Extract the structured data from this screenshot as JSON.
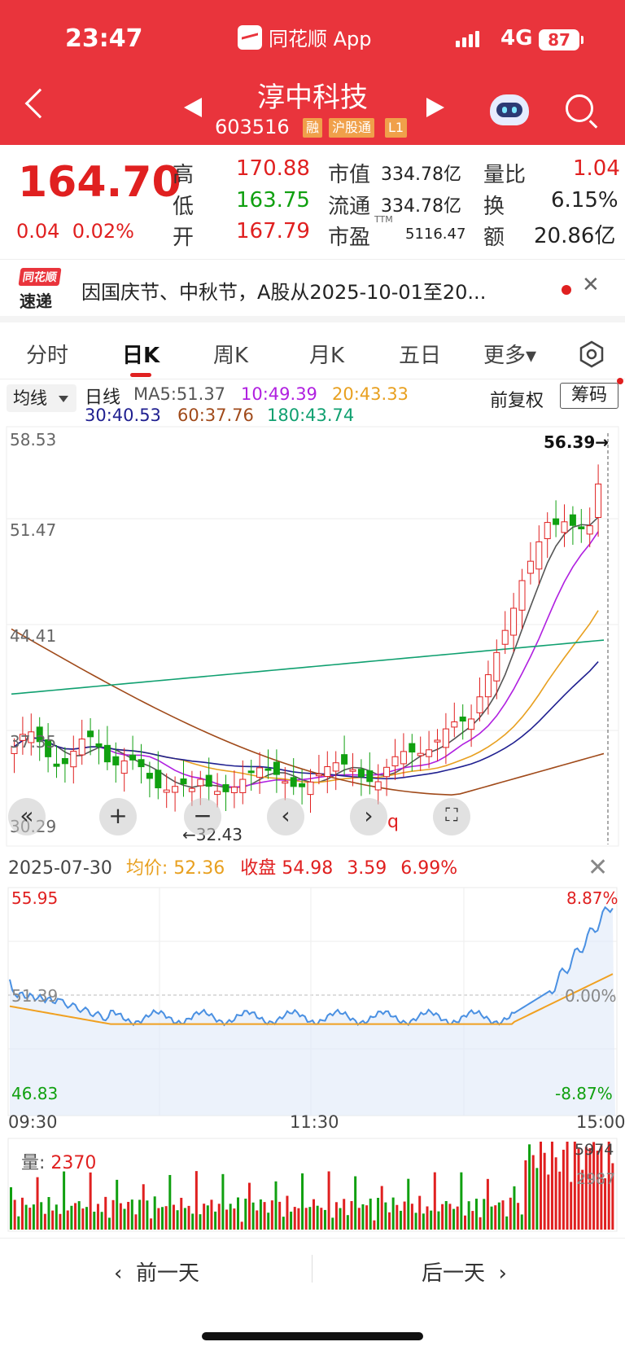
{
  "status_bar": {
    "time": "23:47",
    "app": "同花顺 App",
    "network": "4G",
    "battery": "87"
  },
  "header": {
    "stock_name": "淳中科技",
    "stock_code": "603516",
    "tags": [
      "融",
      "沪股通",
      "L1"
    ]
  },
  "quote": {
    "price": "164.70",
    "change": "0.04",
    "change_pct": "0.02%",
    "high_label": "高",
    "high": "170.88",
    "low_label": "低",
    "low": "163.75",
    "open_label": "开",
    "open": "167.79",
    "mcap_label": "市值",
    "mcap": "334.78亿",
    "float_label": "流通",
    "float": "334.78亿",
    "pe_label": "市盈",
    "pe_sup": "TTM",
    "pe": "5116.47",
    "vol_ratio_label": "量比",
    "vol_ratio": "1.04",
    "turnover_label": "换",
    "turnover": "6.15%",
    "amount_label": "额",
    "amount": "20.86亿"
  },
  "news": {
    "logo_top": "同花顺",
    "logo_bottom": "速递",
    "text": "因国庆节、中秋节，A股从2025-10-01至20..."
  },
  "tabs": [
    "分时",
    "日K",
    "周K",
    "月K",
    "五日",
    "更多▾"
  ],
  "active_tab": "日K",
  "kline": {
    "indicator_select": "均线",
    "period_label": "日线",
    "ma": [
      {
        "label": "MA5:51.37",
        "color": "#555555"
      },
      {
        "label": "10:49.39",
        "color": "#b020e0"
      },
      {
        "label": "20:43.33",
        "color": "#e8a020"
      },
      {
        "label": "30:40.53",
        "color": "#202090"
      },
      {
        "label": "60:37.76",
        "color": "#a04a1a"
      },
      {
        "label": "180:43.74",
        "color": "#10a070"
      }
    ],
    "adjust": "前复权",
    "chips_button": "筹码",
    "y_ticks": [
      "58.53",
      "51.47",
      "44.41",
      "37.35",
      "30.29"
    ],
    "high_mark": "56.39→",
    "low_mark": "←32.43",
    "cursor_label": "q"
  },
  "controls": [
    "«",
    "+",
    "−",
    "‹",
    "›",
    "⛶"
  ],
  "intraday": {
    "date": "2025-07-30",
    "avg_label": "均价: ",
    "avg": "52.36",
    "close_label": "收盘",
    "close": "54.98",
    "change": "3.59",
    "change_pct": "6.99%",
    "y_top": "55.95",
    "y_mid": "51.39",
    "y_bottom": "46.83",
    "pct_top": "8.87%",
    "pct_mid": "0.00%",
    "pct_bottom": "-8.87%",
    "times": [
      "09:30",
      "11:30",
      "15:00"
    ],
    "volume_label": "量: ",
    "volume": "2370",
    "vol_max": "5974",
    "vol_mid": "2987"
  },
  "bottom_nav": {
    "prev": "前一天",
    "next": "后一天"
  },
  "colors": {
    "up": "#e02020",
    "down": "#10a010",
    "brand": "#e9343c",
    "price_line": "#4a90e2",
    "avg_line": "#f0a020"
  }
}
